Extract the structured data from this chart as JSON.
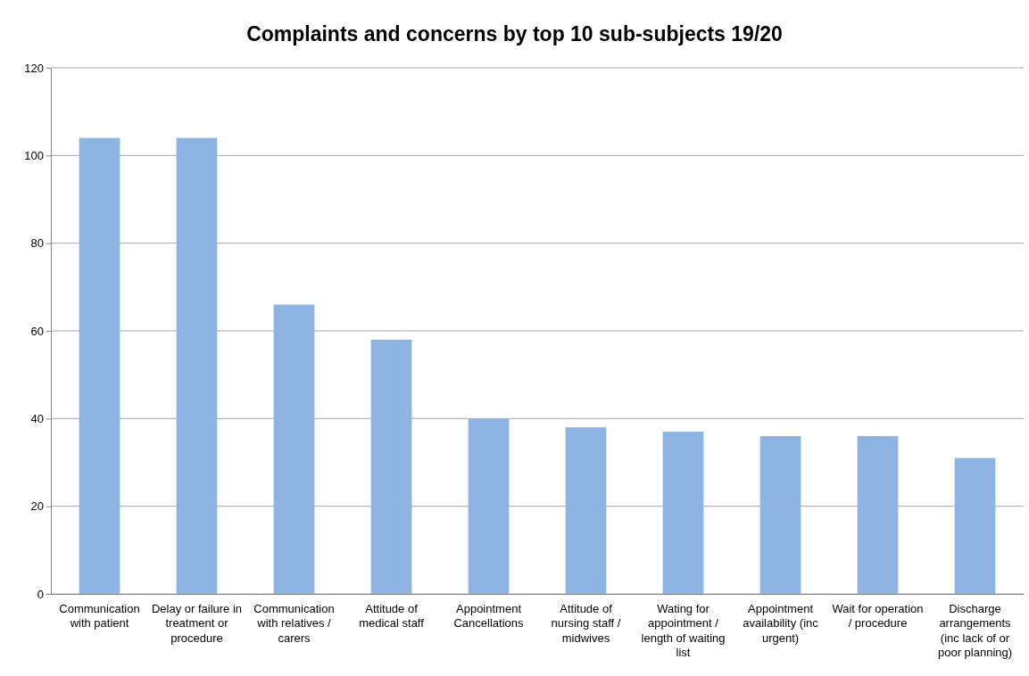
{
  "chart_data": {
    "type": "bar",
    "title": "Complaints and concerns by top 10 sub-subjects 19/20",
    "categories": [
      "Communication with patient",
      "Delay or failure in treatment or procedure",
      "Communication with relatives / carers",
      "Attitude of medical staff",
      "Appointment Cancellations",
      "Attitude of nursing staff / midwives",
      "Wating for appointment / length of waiting list",
      "Appointment availability (inc urgent)",
      "Wait for operation / procedure",
      "Discharge arrangements (inc lack of or poor planning)"
    ],
    "values": [
      104,
      104,
      66,
      58,
      40,
      38,
      37,
      36,
      36,
      31
    ],
    "color": "#8db4e2",
    "ylim": [
      0,
      120
    ],
    "yticks": [
      0,
      20,
      40,
      60,
      80,
      100,
      120
    ],
    "grid": "y"
  }
}
